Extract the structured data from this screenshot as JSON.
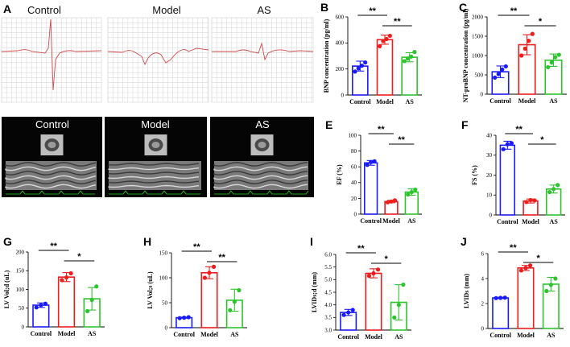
{
  "panels": {
    "A": {
      "label": "A",
      "titles": [
        "Control",
        "Model",
        "AS"
      ]
    },
    "D": {
      "label": "D",
      "titles": [
        "Control",
        "Model",
        "AS"
      ]
    }
  },
  "colors": {
    "control": "#1a1aff",
    "model": "#ee1c1c",
    "as": "#2ec42e",
    "ecg_grid": "#d9d9d9",
    "ecg_trace": "#d04a4a"
  },
  "icons": [
    "ecg-trace-icon",
    "echo-sector-icon",
    "m-mode-icon"
  ],
  "chart_data": [
    {
      "id": "B",
      "type": "bar",
      "label": "B",
      "title": "",
      "xlabel": "",
      "ylabel": "BNP concentration (pg/ml)",
      "categories": [
        "Control",
        "Model",
        "AS"
      ],
      "values": [
        222,
        425,
        290
      ],
      "errors": [
        38,
        35,
        35
      ],
      "points": [
        [
          180,
          205,
          225,
          250
        ],
        [
          375,
          415,
          430,
          455
        ],
        [
          260,
          280,
          295,
          330
        ]
      ],
      "ylim": [
        0,
        600
      ],
      "yticks": [
        "0",
        "200",
        "400",
        "600"
      ],
      "significance": [
        {
          "from": 0,
          "to": 1,
          "text": "**"
        },
        {
          "from": 1,
          "to": 2,
          "text": "**"
        }
      ]
    },
    {
      "id": "C",
      "type": "bar",
      "label": "C",
      "title": "",
      "xlabel": "",
      "ylabel": "NT-proBNP concentration (pg/ml)",
      "categories": [
        "Control",
        "Model",
        "AS"
      ],
      "values": [
        580,
        1280,
        880
      ],
      "errors": [
        150,
        260,
        160
      ],
      "points": [
        [
          430,
          520,
          640,
          720
        ],
        [
          1000,
          1180,
          1380,
          1560
        ],
        [
          700,
          820,
          960,
          1020
        ]
      ],
      "ylim": [
        0,
        2000
      ],
      "yticks": [
        "0",
        "500",
        "1000",
        "1500",
        "2000"
      ],
      "significance": [
        {
          "from": 0,
          "to": 1,
          "text": "**"
        },
        {
          "from": 1,
          "to": 2,
          "text": "*"
        }
      ]
    },
    {
      "id": "E",
      "type": "bar",
      "label": "E",
      "title": "",
      "xlabel": "",
      "ylabel": "EF (%)",
      "categories": [
        "Control",
        "Model",
        "AS"
      ],
      "values": [
        65,
        16,
        28
      ],
      "errors": [
        3,
        1.5,
        4
      ],
      "points": [
        [
          62.5,
          66,
          67
        ],
        [
          15,
          16,
          17.5
        ],
        [
          25,
          28,
          31
        ]
      ],
      "ylim": [
        0,
        100
      ],
      "yticks": [
        "0",
        "20",
        "40",
        "60",
        "80",
        "100"
      ],
      "significance": [
        {
          "from": 0,
          "to": 1,
          "text": "**"
        },
        {
          "from": 1,
          "to": 2,
          "text": "**"
        }
      ]
    },
    {
      "id": "F",
      "type": "bar",
      "label": "F",
      "title": "",
      "xlabel": "",
      "ylabel": "FS (%)",
      "categories": [
        "Control",
        "Model",
        "AS"
      ],
      "values": [
        35,
        7,
        13
      ],
      "errors": [
        2,
        1,
        2
      ],
      "points": [
        [
          33,
          35.5,
          36
        ],
        [
          6.5,
          7.5,
          7.3
        ],
        [
          11.5,
          13,
          15
        ]
      ],
      "ylim": [
        0,
        40
      ],
      "yticks": [
        "0",
        "10",
        "20",
        "30",
        "40"
      ],
      "significance": [
        {
          "from": 0,
          "to": 1,
          "text": "**"
        },
        {
          "from": 1,
          "to": 2,
          "text": "*"
        }
      ]
    },
    {
      "id": "G",
      "type": "bar",
      "label": "G",
      "title": "",
      "xlabel": "",
      "ylabel": "LV Vol;d (uL)",
      "categories": [
        "Control",
        "Model",
        "AS"
      ],
      "values": [
        58,
        133,
        75
      ],
      "errors": [
        6,
        12,
        30
      ],
      "points": [
        [
          52,
          58,
          62
        ],
        [
          125,
          132,
          143
        ],
        [
          42,
          72,
          108
        ]
      ],
      "ylim": [
        0,
        200
      ],
      "yticks": [
        "0",
        "50",
        "100",
        "150",
        "200"
      ],
      "significance": [
        {
          "from": 0,
          "to": 1,
          "text": "**"
        },
        {
          "from": 1,
          "to": 2,
          "text": "*"
        }
      ]
    },
    {
      "id": "H",
      "type": "bar",
      "label": "H",
      "title": "",
      "xlabel": "",
      "ylabel": "LV Vol;s (uL)",
      "categories": [
        "Control",
        "Model",
        "AS"
      ],
      "values": [
        20,
        110,
        55
      ],
      "errors": [
        1,
        12,
        22
      ],
      "points": [
        [
          19,
          20,
          21
        ],
        [
          100,
          110,
          122
        ],
        [
          35,
          52,
          75
        ]
      ],
      "ylim": [
        0,
        150
      ],
      "yticks": [
        "0",
        "50",
        "100",
        "150"
      ],
      "significance": [
        {
          "from": 0,
          "to": 1,
          "text": "**"
        },
        {
          "from": 1,
          "to": 2,
          "text": "**"
        }
      ]
    },
    {
      "id": "I",
      "type": "bar",
      "label": "I",
      "title": "",
      "xlabel": "",
      "ylabel": "LVIDs;d (mm)",
      "categories": [
        "Control",
        "Model",
        "AS"
      ],
      "values": [
        3.7,
        5.25,
        4.1
      ],
      "errors": [
        0.12,
        0.18,
        0.7
      ],
      "points": [
        [
          3.6,
          3.7,
          3.8
        ],
        [
          5.15,
          5.25,
          5.4
        ],
        [
          3.5,
          4.0,
          4.8
        ]
      ],
      "ylim": [
        3.0,
        6.0
      ],
      "yticks": [
        "3.0",
        "3.5",
        "4.0",
        "4.5",
        "5.0",
        "5.5",
        "6.0"
      ],
      "significance": [
        {
          "from": 0,
          "to": 1,
          "text": "**"
        },
        {
          "from": 1,
          "to": 2,
          "text": "*"
        }
      ]
    },
    {
      "id": "J",
      "type": "bar",
      "label": "J",
      "title": "",
      "xlabel": "",
      "ylabel": "LVIDs (mm)",
      "categories": [
        "Control",
        "Model",
        "AS"
      ],
      "values": [
        2.45,
        4.85,
        3.55
      ],
      "errors": [
        0.05,
        0.2,
        0.55
      ],
      "points": [
        [
          2.43,
          2.45,
          2.47
        ],
        [
          4.65,
          4.85,
          5.05
        ],
        [
          3.0,
          3.5,
          4.0
        ]
      ],
      "ylim": [
        0,
        6
      ],
      "yticks": [
        "0",
        "2",
        "4",
        "6"
      ],
      "significance": [
        {
          "from": 0,
          "to": 1,
          "text": "**"
        },
        {
          "from": 1,
          "to": 2,
          "text": "*"
        }
      ]
    }
  ]
}
